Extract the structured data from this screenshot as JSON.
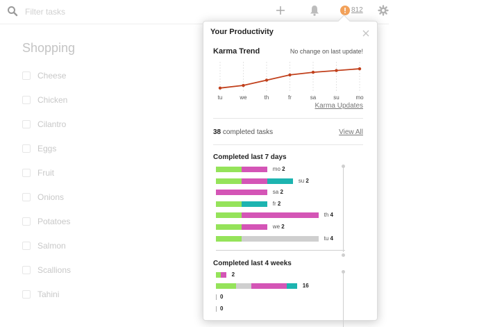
{
  "header": {
    "search_placeholder": "Filter tasks",
    "karma_score": "812"
  },
  "list": {
    "title": "Shopping",
    "items": [
      "Cheese",
      "Chicken",
      "Cilantro",
      "Eggs",
      "Fruit",
      "Onions",
      "Potatoes",
      "Salmon",
      "Scallions",
      "Tahini"
    ]
  },
  "popup": {
    "title": "Your Productivity",
    "karma_trend_title": "Karma Trend",
    "karma_trend_note": "No change on last update!",
    "karma_updates_link": "Karma Updates",
    "completed_count": "38",
    "completed_text": "completed tasks",
    "view_all_link": "View All",
    "last7_title": "Completed last 7 days",
    "last4_title": "Completed last 4 weeks"
  },
  "colors": {
    "trend_line": "#c1401c",
    "green": "#95e35a",
    "pink": "#d455b6",
    "teal": "#1db4b0",
    "grey": "#cfcfcf"
  },
  "chart_data": [
    {
      "type": "line",
      "title": "Karma Trend",
      "categories": [
        "tu",
        "we",
        "th",
        "fr",
        "sa",
        "su",
        "mo"
      ],
      "values": [
        10,
        19,
        37,
        55,
        64,
        70,
        76
      ],
      "ylim": [
        0,
        100
      ],
      "y_ticks_shown": false
    },
    {
      "type": "bar",
      "title": "Completed last 7 days",
      "orientation": "horizontal-stacked",
      "rows": [
        {
          "label": "mo",
          "count": "2",
          "segments": [
            {
              "color": "green",
              "value": 3
            },
            {
              "color": "pink",
              "value": 3
            }
          ]
        },
        {
          "label": "su",
          "count": "2",
          "segments": [
            {
              "color": "green",
              "value": 3
            },
            {
              "color": "pink",
              "value": 3
            },
            {
              "color": "teal",
              "value": 3
            }
          ]
        },
        {
          "label": "sa",
          "count": "2",
          "segments": [
            {
              "color": "pink",
              "value": 6
            }
          ]
        },
        {
          "label": "fr",
          "count": "2",
          "segments": [
            {
              "color": "green",
              "value": 3
            },
            {
              "color": "teal",
              "value": 3
            }
          ]
        },
        {
          "label": "th",
          "count": "4",
          "segments": [
            {
              "color": "green",
              "value": 3
            },
            {
              "color": "pink",
              "value": 9
            }
          ]
        },
        {
          "label": "we",
          "count": "2",
          "segments": [
            {
              "color": "green",
              "value": 3
            },
            {
              "color": "pink",
              "value": 3
            }
          ]
        },
        {
          "label": "tu",
          "count": "4",
          "segments": [
            {
              "color": "green",
              "value": 3
            },
            {
              "color": "grey",
              "value": 9
            }
          ]
        }
      ]
    },
    {
      "type": "bar",
      "title": "Completed last 4 weeks",
      "orientation": "horizontal-stacked",
      "rows": [
        {
          "count": "2",
          "segments": [
            {
              "color": "green",
              "value": 1
            },
            {
              "color": "pink",
              "value": 1
            }
          ]
        },
        {
          "count": "16",
          "segments": [
            {
              "color": "green",
              "value": 4
            },
            {
              "color": "grey",
              "value": 3
            },
            {
              "color": "pink",
              "value": 7
            },
            {
              "color": "teal",
              "value": 2
            }
          ]
        },
        {
          "count": "0",
          "segments": []
        },
        {
          "count": "0",
          "segments": []
        }
      ]
    }
  ]
}
